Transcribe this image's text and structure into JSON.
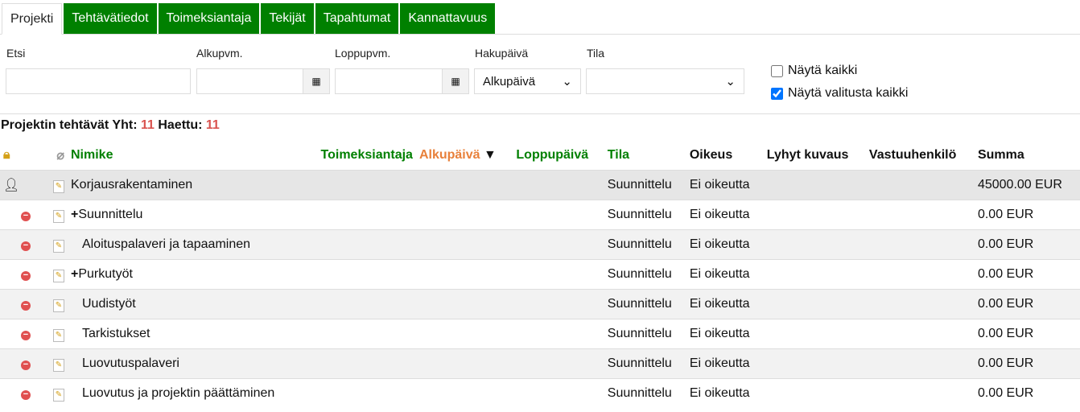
{
  "tabs": [
    "Projekti",
    "Tehtävätiedot",
    "Toimeksiantaja",
    "Tekijät",
    "Tapahtumat",
    "Kannattavuus"
  ],
  "filters": {
    "etsi": "Etsi",
    "alkupvm": "Alkupvm.",
    "loppupvm": "Loppupvm.",
    "hakupaiva": "Hakupäivä",
    "hakupaiva_value": "Alkupäivä",
    "tila": "Tila",
    "tila_value": "",
    "show_all": "Näytä kaikki",
    "show_all_checked": false,
    "show_selected_all": "Näytä valitusta kaikki",
    "show_selected_all_checked": true
  },
  "summary": {
    "label1": "Projektin tehtävät Yht:",
    "total": "11",
    "label2": "Haettu:",
    "fetched": "11"
  },
  "columns": {
    "nimike": "Nimike",
    "toimeksiantaja": "Toimeksiantaja",
    "alkupaiva": "Alkupäivä",
    "loppupaiva": "Loppupäivä",
    "tila": "Tila",
    "oikeus": "Oikeus",
    "lyhyt": "Lyhyt kuvaus",
    "vastuu": "Vastuuhenkilö",
    "summa": "Summa"
  },
  "rows": [
    {
      "name": "Korjausrakentaminen",
      "tila": "Suunnittelu",
      "oikeus": "Ei oikeutta",
      "summa": "45000.00 EUR"
    },
    {
      "name": "Suunnittelu",
      "expand": "+",
      "tila": "Suunnittelu",
      "oikeus": "Ei oikeutta",
      "summa": "0.00 EUR"
    },
    {
      "name": "Aloituspalaveri ja tapaaminen",
      "tila": "Suunnittelu",
      "oikeus": "Ei oikeutta",
      "summa": "0.00 EUR"
    },
    {
      "name": "Purkutyöt",
      "expand": "+",
      "tila": "Suunnittelu",
      "oikeus": "Ei oikeutta",
      "summa": "0.00 EUR"
    },
    {
      "name": "Uudistyöt",
      "tila": "Suunnittelu",
      "oikeus": "Ei oikeutta",
      "summa": "0.00 EUR"
    },
    {
      "name": "Tarkistukset",
      "tila": "Suunnittelu",
      "oikeus": "Ei oikeutta",
      "summa": "0.00 EUR"
    },
    {
      "name": "Luovutuspalaveri",
      "tila": "Suunnittelu",
      "oikeus": "Ei oikeutta",
      "summa": "0.00 EUR"
    },
    {
      "name": "Luovutus ja projektin päättäminen",
      "tila": "Suunnittelu",
      "oikeus": "Ei oikeutta",
      "summa": "0.00 EUR"
    }
  ]
}
